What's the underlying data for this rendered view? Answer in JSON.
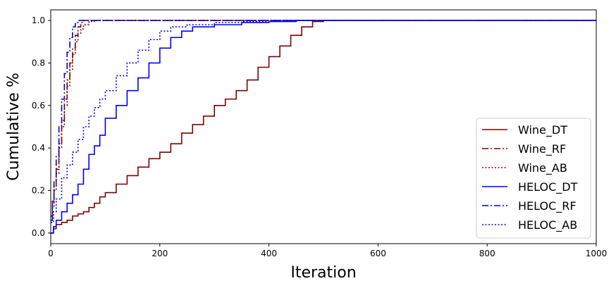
{
  "chart_data": {
    "type": "line",
    "title": "",
    "xlabel": "Iteration",
    "ylabel": "Cumulative %",
    "xlim": [
      0,
      1000
    ],
    "ylim": [
      -0.05,
      1.05
    ],
    "x_ticks": [
      0,
      200,
      400,
      600,
      800,
      1000
    ],
    "y_ticks": [
      0.0,
      0.2,
      0.4,
      0.6,
      0.8,
      1.0
    ],
    "x_tick_labels": [
      "0",
      "200",
      "400",
      "600",
      "800",
      "1000"
    ],
    "y_tick_labels": [
      "0.0",
      "0.2",
      "0.4",
      "0.6",
      "0.8",
      "1.0"
    ],
    "grid": false,
    "legend_position": "bottom-right",
    "series": [
      {
        "name": "Wine_DT",
        "color": "#800000",
        "style": "solid",
        "x": [
          0,
          5,
          10,
          20,
          30,
          40,
          50,
          60,
          70,
          80,
          90,
          100,
          120,
          140,
          160,
          180,
          200,
          220,
          240,
          260,
          280,
          300,
          320,
          340,
          360,
          380,
          400,
          420,
          440,
          460,
          480,
          500,
          520,
          1000
        ],
        "y": [
          0,
          0.02,
          0.04,
          0.05,
          0.06,
          0.08,
          0.09,
          0.1,
          0.12,
          0.14,
          0.17,
          0.19,
          0.23,
          0.27,
          0.31,
          0.35,
          0.38,
          0.42,
          0.47,
          0.51,
          0.55,
          0.6,
          0.63,
          0.67,
          0.72,
          0.78,
          0.83,
          0.88,
          0.93,
          0.97,
          0.995,
          1.0,
          1.0,
          1.0
        ]
      },
      {
        "name": "Wine_RF",
        "color": "#800000",
        "style": "dashdot",
        "x": [
          0,
          3,
          6,
          10,
          15,
          20,
          25,
          30,
          35,
          40,
          45,
          50,
          55,
          60,
          70,
          1000
        ],
        "y": [
          0.08,
          0.15,
          0.22,
          0.3,
          0.42,
          0.53,
          0.63,
          0.72,
          0.8,
          0.87,
          0.93,
          0.97,
          0.99,
          1.0,
          1.0,
          1.0
        ]
      },
      {
        "name": "Wine_AB",
        "color": "#800000",
        "style": "dotted",
        "x": [
          0,
          3,
          6,
          10,
          15,
          20,
          25,
          30,
          35,
          40,
          45,
          50,
          55,
          60,
          70,
          80,
          1000
        ],
        "y": [
          0.05,
          0.12,
          0.2,
          0.28,
          0.4,
          0.5,
          0.6,
          0.69,
          0.77,
          0.84,
          0.9,
          0.94,
          0.96,
          0.98,
          0.995,
          1.0,
          1.0
        ]
      },
      {
        "name": "HELOC_DT",
        "color": "#0000ff",
        "style": "solid",
        "x": [
          0,
          5,
          10,
          20,
          30,
          40,
          50,
          60,
          70,
          80,
          90,
          100,
          120,
          140,
          160,
          180,
          200,
          220,
          240,
          260,
          300,
          350,
          400,
          450,
          500,
          1000
        ],
        "y": [
          0,
          0.03,
          0.06,
          0.1,
          0.14,
          0.18,
          0.23,
          0.3,
          0.37,
          0.41,
          0.46,
          0.54,
          0.6,
          0.67,
          0.73,
          0.8,
          0.87,
          0.92,
          0.95,
          0.97,
          0.98,
          0.99,
          0.995,
          1.0,
          1.0,
          1.0
        ]
      },
      {
        "name": "HELOC_RF",
        "color": "#0000cc",
        "style": "dashdot",
        "x": [
          0,
          3,
          6,
          10,
          15,
          20,
          25,
          30,
          35,
          40,
          45,
          50,
          55,
          1000
        ],
        "y": [
          0.06,
          0.14,
          0.24,
          0.36,
          0.5,
          0.63,
          0.75,
          0.85,
          0.92,
          0.97,
          0.99,
          1.0,
          1.0,
          1.0
        ]
      },
      {
        "name": "HELOC_AB",
        "color": "#0000ff",
        "style": "dotted",
        "x": [
          0,
          5,
          10,
          20,
          30,
          40,
          50,
          60,
          70,
          80,
          90,
          100,
          120,
          140,
          160,
          180,
          200,
          220,
          250,
          300,
          350,
          400,
          1000
        ],
        "y": [
          0.05,
          0.1,
          0.16,
          0.26,
          0.32,
          0.38,
          0.44,
          0.5,
          0.55,
          0.59,
          0.63,
          0.67,
          0.74,
          0.8,
          0.86,
          0.91,
          0.95,
          0.97,
          0.98,
          0.99,
          0.995,
          1.0,
          1.0
        ]
      }
    ]
  }
}
